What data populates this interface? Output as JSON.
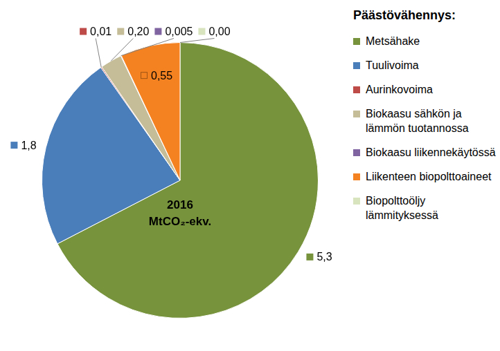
{
  "chart_data": {
    "type": "pie",
    "title": "2016",
    "subtitle": "MtCO₂-ekv.",
    "legend_title": "Päästövähennys:",
    "legend": "right",
    "data_labels": true,
    "categories": [
      "Metsähake",
      "Tuulivoima",
      "Aurinkovoima",
      "Biokaasu sähkön ja lämmön tuotannossa",
      "Biokaasu liikennekäytössä",
      "Liikenteen biopolttoaineet",
      "Biopolttoöljy lämmityksessä"
    ],
    "values": [
      5.3,
      1.8,
      0.01,
      0.2,
      0.005,
      0.55,
      0.0
    ],
    "value_labels": [
      "5,3",
      "1,8",
      "0,01",
      "0,20",
      "0,005",
      "0,55",
      "0,00"
    ],
    "colors": [
      "#77933c",
      "#4a7ebb",
      "#be4b48",
      "#c4bd97",
      "#8064a2",
      "#f58220",
      "#d7e4bd"
    ]
  }
}
